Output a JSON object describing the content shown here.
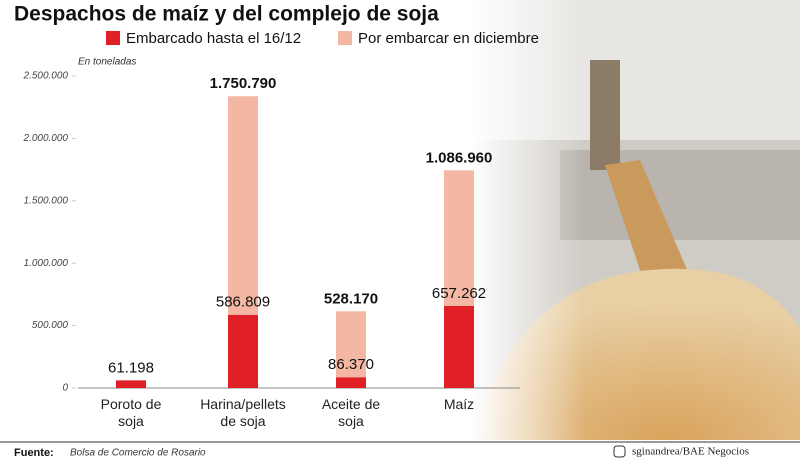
{
  "chart_data": {
    "type": "stacked_bar",
    "title": "Despachos de maíz y del complejo de soja",
    "subtitle": "En toneladas",
    "categories": [
      "Poroto de soja",
      "Harina/pellets de soja",
      "Aceite de soja",
      "Maíz"
    ],
    "series": [
      {
        "name": "Embarcado hasta el 16/12",
        "color": "#e01f26",
        "values": [
          61198,
          586809,
          86370,
          657262
        ],
        "value_labels": [
          "61.198",
          "586.809",
          "86.370",
          "657.262"
        ]
      },
      {
        "name": "Por embarcar en diciembre",
        "color": "#f4b7a3",
        "values": [
          null,
          1750790,
          528170,
          1086960
        ],
        "value_labels": [
          null,
          "1.750.790",
          "528.170",
          "1.086.960"
        ]
      }
    ],
    "ylim": [
      0,
      2500000
    ],
    "yticks": [
      0,
      {
        "value": 500000,
        "label": "500.000"
      },
      {
        "value": 1000000,
        "label": "1.000.000"
      },
      {
        "value": 1500000,
        "label": "1.500.000"
      },
      {
        "value": 2000000,
        "label": "2.000.000"
      },
      {
        "value": 2500000,
        "label": "2.500.000"
      }
    ],
    "source_label": "Fuente:",
    "source": "Bolsa de Comercio de Rosario",
    "credit": "sginandrea/BAE Negocios"
  }
}
